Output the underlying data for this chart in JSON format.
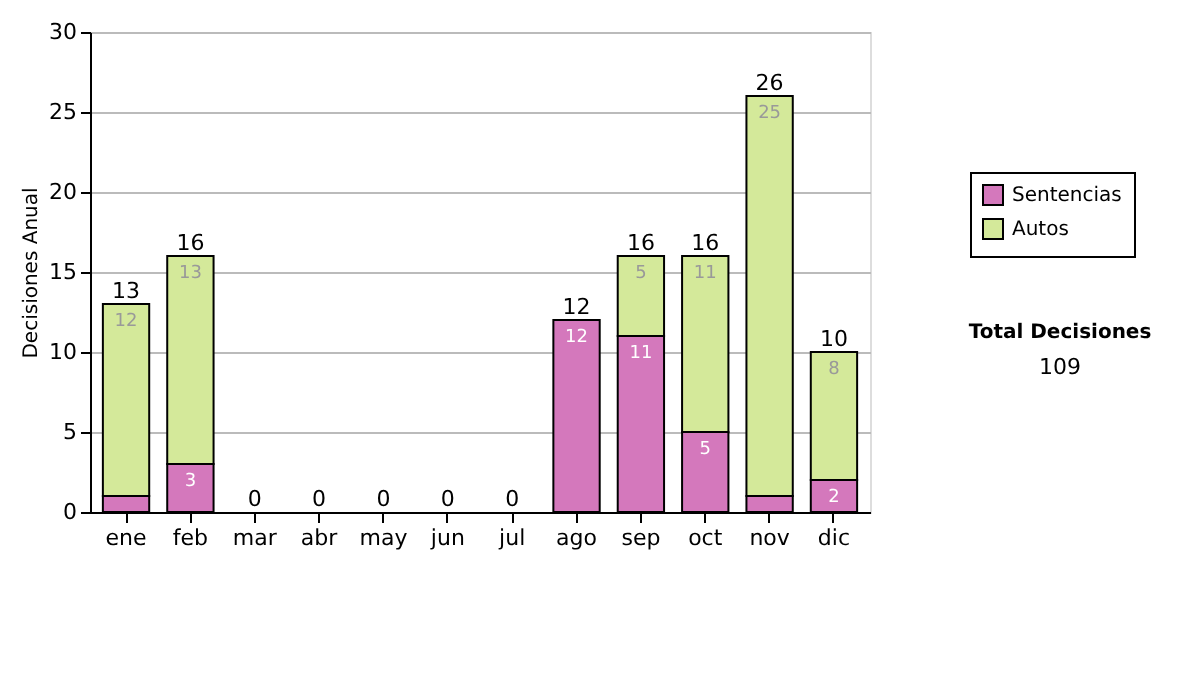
{
  "chart_data": {
    "type": "bar",
    "stacked": true,
    "ylabel": "Decisiones Anual",
    "categories": [
      "ene",
      "feb",
      "mar",
      "abr",
      "may",
      "jun",
      "jul",
      "ago",
      "sep",
      "oct",
      "nov",
      "dic"
    ],
    "series": [
      {
        "name": "Sentencias",
        "color": "#d478bc",
        "values": [
          1,
          3,
          0,
          0,
          0,
          0,
          0,
          12,
          11,
          5,
          1,
          2
        ],
        "value_labels": [
          null,
          "3",
          null,
          null,
          null,
          null,
          null,
          "12",
          "11",
          "5",
          null,
          "2"
        ]
      },
      {
        "name": "Autos",
        "color": "#d4e99a",
        "values": [
          12,
          13,
          0,
          0,
          0,
          0,
          0,
          0,
          5,
          11,
          25,
          8
        ],
        "value_labels": [
          "12",
          "13",
          null,
          null,
          null,
          null,
          null,
          null,
          "5",
          "11",
          "25",
          "8"
        ]
      }
    ],
    "totals": [
      "13",
      "16",
      "0",
      "0",
      "0",
      "0",
      "0",
      "12",
      "16",
      "16",
      "26",
      "10"
    ],
    "ylim": [
      0,
      30
    ],
    "yticks": [
      0,
      5,
      10,
      15,
      20,
      25,
      30
    ],
    "grid": "y",
    "legend": "right",
    "annotations": [
      "Total Decisiones",
      "109"
    ]
  }
}
